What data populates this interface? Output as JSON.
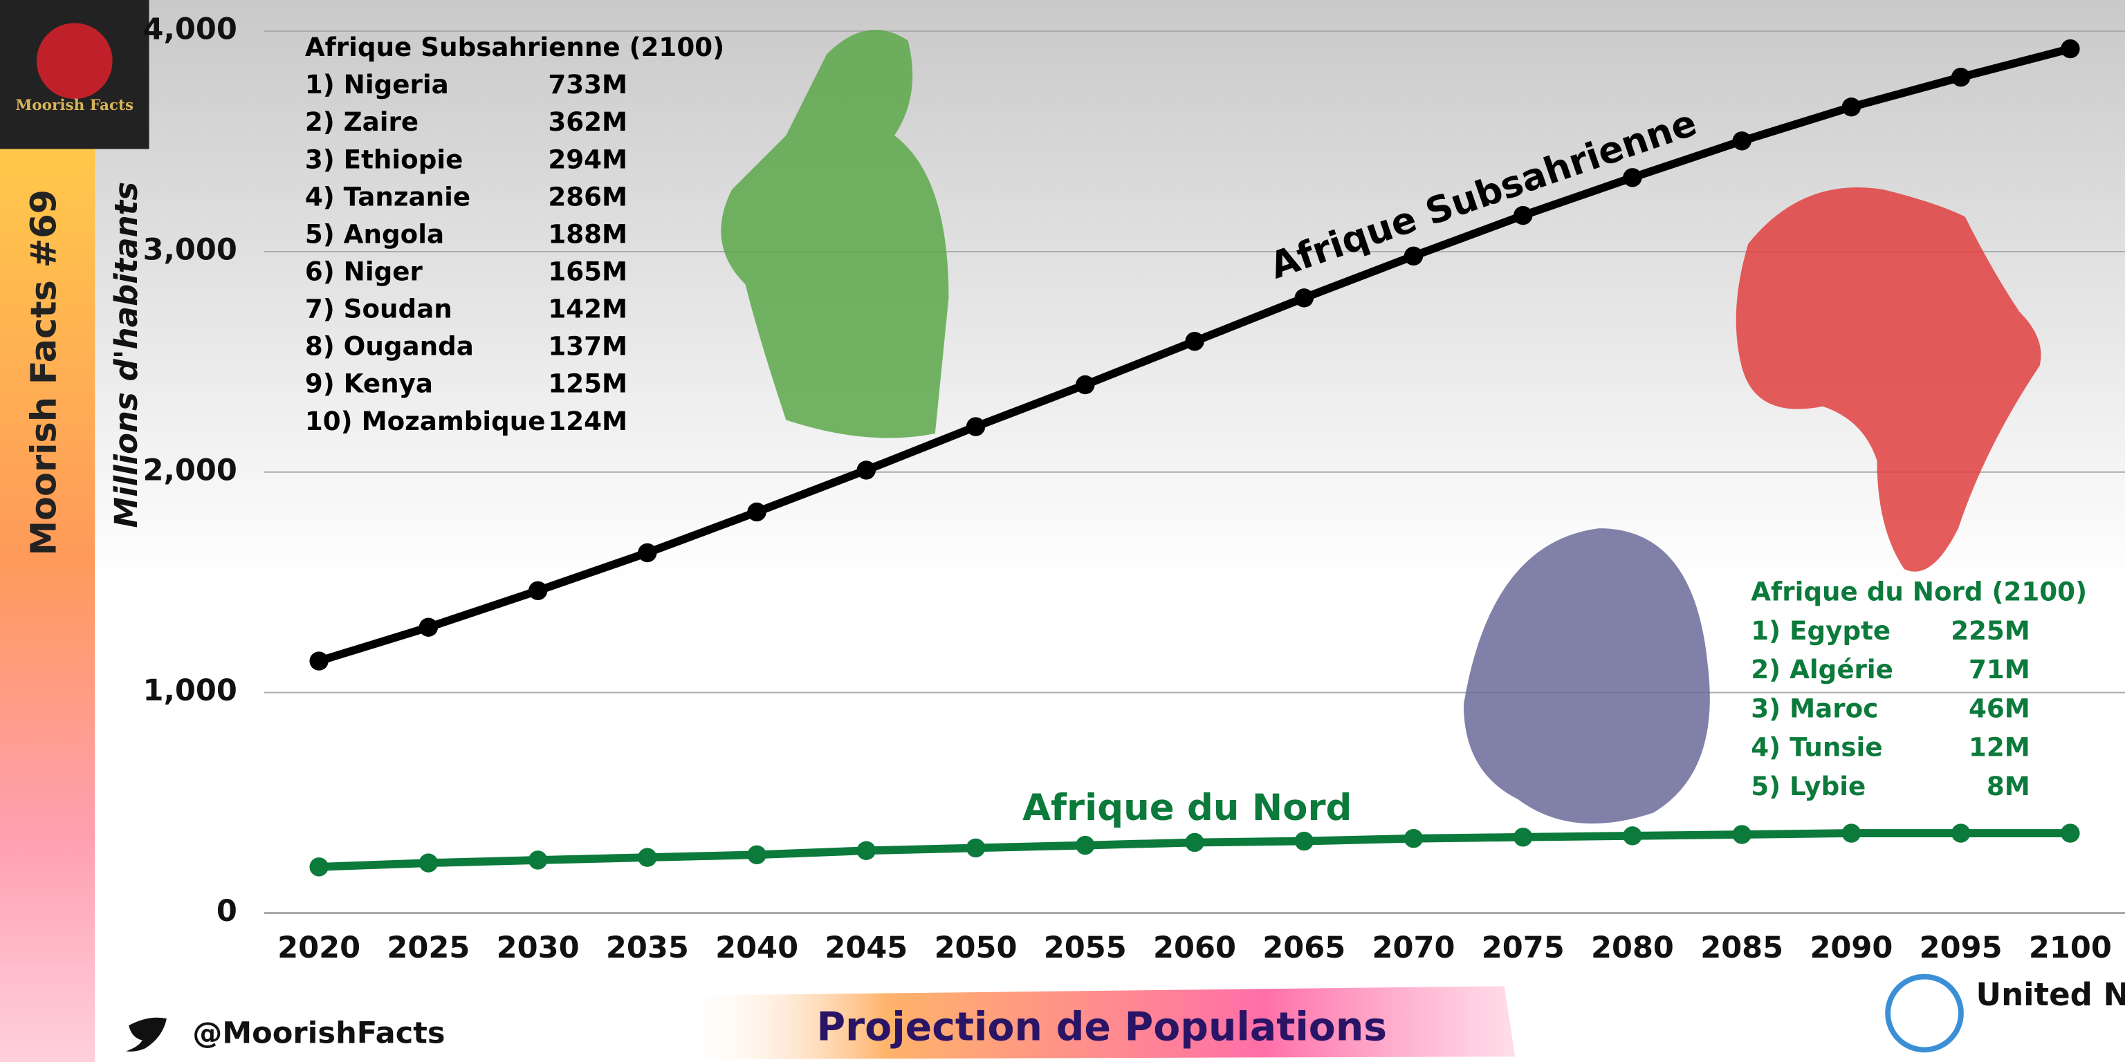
{
  "chart_data": {
    "type": "line",
    "title": "Projection de Populations",
    "brand": "Moorish Facts #69",
    "logo_text": "Moorish Facts",
    "handle": "@MoorishFacts",
    "source": "United Nations",
    "ylabel": "Millions d'habitants",
    "x": [
      2020,
      2025,
      2030,
      2035,
      2040,
      2045,
      2050,
      2055,
      2060,
      2065,
      2070,
      2075,
      2080,
      2085,
      2090,
      2095,
      2100
    ],
    "xlim": [
      2017.5,
      2102.5
    ],
    "xticks": [
      2020,
      2025,
      2030,
      2035,
      2040,
      2045,
      2050,
      2055,
      2060,
      2065,
      2070,
      2075,
      2080,
      2085,
      2090,
      2095,
      2100
    ],
    "ylim": [
      0,
      4000
    ],
    "yticks": [
      0,
      {
        "value": 1000,
        "label": "1,000"
      },
      {
        "value": 2000,
        "label": "2,000"
      },
      {
        "value": 3000,
        "label": "3,000"
      },
      {
        "value": 4000,
        "label": "4,000"
      }
    ],
    "grid": true,
    "series": [
      {
        "name": "Afrique Subsahrienne",
        "color": "#000000",
        "values": [
          1143,
          1296,
          1462,
          1634,
          1819,
          2009,
          2206,
          2396,
          2593,
          2790,
          2980,
          3164,
          3336,
          3502,
          3656,
          3791,
          3920
        ]
      },
      {
        "name": "Afrique du Nord",
        "color": "#0b7a3b",
        "values": [
          209,
          227,
          240,
          252,
          264,
          283,
          295,
          307,
          320,
          326,
          338,
          344,
          350,
          356,
          362,
          362,
          362
        ]
      }
    ],
    "tables": [
      {
        "title": "Afrique Subsahrienne (2100)",
        "color": "#000000",
        "rows": [
          [
            "1) Nigeria",
            "733M"
          ],
          [
            "2) Zaire",
            "362M"
          ],
          [
            "3) Ethiopie",
            "294M"
          ],
          [
            "4) Tanzanie",
            "286M"
          ],
          [
            "5) Angola",
            "188M"
          ],
          [
            "6) Niger",
            "165M"
          ],
          [
            "7) Soudan",
            "142M"
          ],
          [
            "8) Ouganda",
            "137M"
          ],
          [
            "9) Kenya",
            "125M"
          ],
          [
            "10) Mozambique",
            "124M"
          ]
        ]
      },
      {
        "title": "Afrique du Nord (2100)",
        "color": "#0b7a3b",
        "rows": [
          [
            "1) Egypte",
            "225M"
          ],
          [
            "2) Algérie",
            "71M"
          ],
          [
            "3) Maroc",
            "46M"
          ],
          [
            "4) Tunsie",
            "12M"
          ],
          [
            "5) Lybie",
            "8M"
          ]
        ]
      }
    ]
  }
}
